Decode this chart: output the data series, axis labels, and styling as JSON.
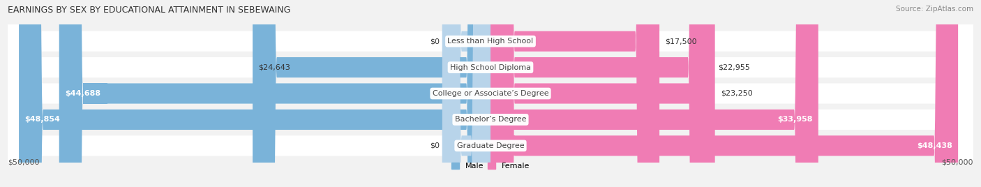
{
  "title": "EARNINGS BY SEX BY EDUCATIONAL ATTAINMENT IN SEBEWAING",
  "source": "Source: ZipAtlas.com",
  "categories": [
    "Less than High School",
    "High School Diploma",
    "College or Associate’s Degree",
    "Bachelor’s Degree",
    "Graduate Degree"
  ],
  "male_values": [
    0,
    24643,
    44688,
    48854,
    0
  ],
  "female_values": [
    17500,
    22955,
    23250,
    33958,
    48438
  ],
  "male_labels": [
    "$0",
    "$24,643",
    "$44,688",
    "$48,854",
    "$0"
  ],
  "female_labels": [
    "$17,500",
    "$22,955",
    "$23,250",
    "$33,958",
    "$48,438"
  ],
  "male_color": "#7ab3d9",
  "female_color": "#f07cb4",
  "male_color_light": "#b8d4ea",
  "female_color_light": "#f9c0d8",
  "max_value": 50000,
  "xlabel_left": "$50,000",
  "xlabel_right": "$50,000",
  "legend_male": "Male",
  "legend_female": "Female",
  "bg_color": "#f2f2f2",
  "bar_bg_color": "#e8e8e8",
  "row_bg_color": "#ffffff",
  "title_fontsize": 9,
  "source_fontsize": 7.5,
  "label_fontsize": 8,
  "cat_fontsize": 8
}
